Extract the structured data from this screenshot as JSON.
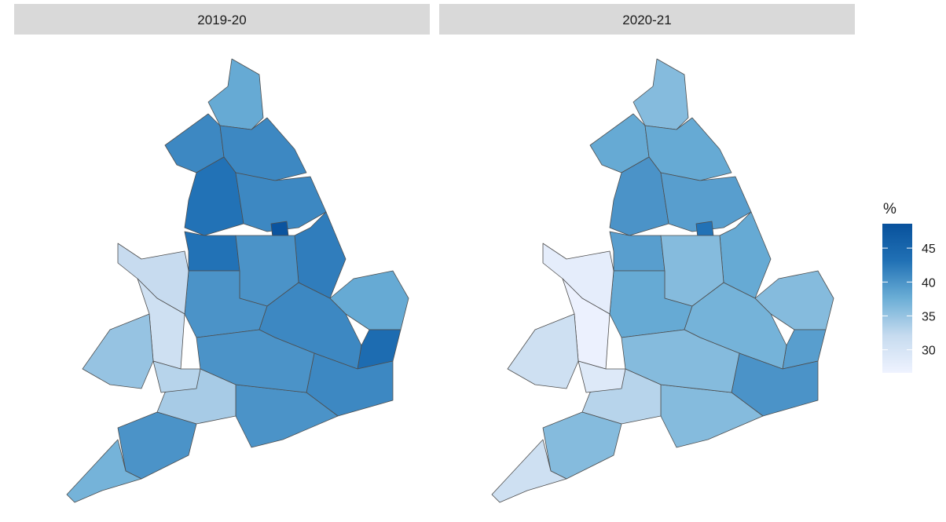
{
  "chart_data": [
    {
      "type": "choropleth",
      "title": "2019-20",
      "values": [
        38,
        41,
        41,
        43,
        41,
        48,
        42,
        43,
        40,
        40,
        38,
        44,
        41,
        41,
        40,
        40,
        34,
        40,
        37,
        32,
        31,
        35,
        33
      ]
    },
    {
      "type": "choropleth",
      "title": "2020-21",
      "values": [
        36,
        38,
        38,
        40,
        39,
        43,
        38,
        39,
        36,
        38,
        36,
        39,
        37,
        40,
        36,
        36,
        33,
        36,
        31,
        28,
        27,
        31,
        29
      ]
    }
  ],
  "legend": {
    "title": "%",
    "ticks": [
      30,
      35,
      40,
      45
    ],
    "lim": [
      26.6,
      48.6
    ],
    "colors": [
      "#eff3ff",
      "#c6dbef",
      "#6baed6",
      "#2171b5",
      "#08519c"
    ]
  }
}
